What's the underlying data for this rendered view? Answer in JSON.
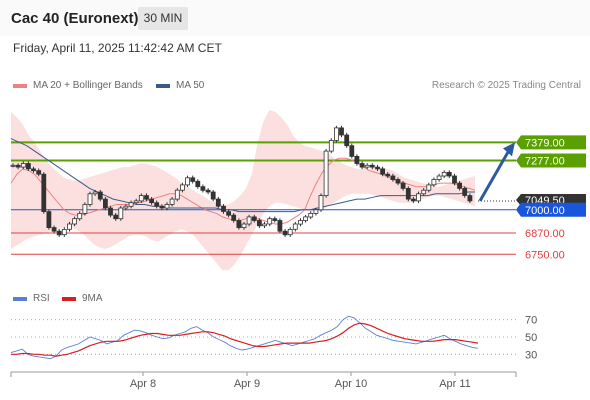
{
  "header": {
    "title": "Cac 40 (Euronext)",
    "timeframe": "30 MIN"
  },
  "timestamp": "Friday, April 11, 2025 11:42:42 AM CET",
  "legend": {
    "ma20_label": "MA 20 + Bollinger Bands",
    "ma50_label": "MA 50",
    "ma20_color": "#f08080",
    "ma50_color": "#3a5a8c",
    "copyright": "Research © 2025 Trading Central"
  },
  "rsi_legend": {
    "rsi_label": "RSI",
    "ma9_label": "9MA",
    "rsi_color": "#5b7fd6",
    "ma9_color": "#d62020"
  },
  "chart_data": [
    {
      "type": "candlestick",
      "x_ticks": [
        "Apr 8",
        "Apr 9",
        "Apr 10",
        "Apr 11"
      ],
      "ylim": [
        6600,
        7600
      ],
      "price_levels": [
        {
          "value": 7379,
          "label": "7379.00",
          "kind": "resistance",
          "color": "#5aa000"
        },
        {
          "value": 7277,
          "label": "7277.00",
          "kind": "resistance",
          "color": "#5aa000"
        },
        {
          "value": 7049.5,
          "label": "7049.50",
          "kind": "last-price",
          "color": "#333333"
        },
        {
          "value": 7000,
          "label": "7000.00",
          "kind": "pivot",
          "color": "#1a56db"
        },
        {
          "value": 6870,
          "label": "6870.00",
          "kind": "support",
          "color": "#e04040"
        },
        {
          "value": 6750,
          "label": "6750.00",
          "kind": "support",
          "color": "#e04040"
        }
      ],
      "forecast_arrow": {
        "from": 7050,
        "to": 7379,
        "direction": "up"
      },
      "close_series": [
        7250,
        7240,
        7260,
        7230,
        7220,
        7200,
        6990,
        6900,
        6880,
        6860,
        6890,
        6920,
        6950,
        6980,
        7030,
        7090,
        7100,
        7060,
        7010,
        6970,
        6950,
        7010,
        7020,
        7040,
        7050,
        7080,
        7060,
        7040,
        7020,
        7010,
        7030,
        7060,
        7110,
        7140,
        7180,
        7160,
        7130,
        7110,
        7100,
        7060,
        7020,
        6990,
        6970,
        6940,
        6900,
        6920,
        6960,
        6940,
        6910,
        6920,
        6950,
        6940,
        6880,
        6860,
        6890,
        6920,
        6940,
        6960,
        6980,
        7000,
        7080,
        7330,
        7390,
        7460,
        7420,
        7360,
        7300,
        7260,
        7240,
        7250,
        7240,
        7230,
        7200,
        7190,
        7170,
        7150,
        7120,
        7060,
        7050,
        7090,
        7110,
        7140,
        7170,
        7190,
        7210,
        7190,
        7150,
        7120,
        7080,
        7050
      ],
      "ma20_series": [
        7150,
        7200,
        7230,
        7220,
        7200,
        7160,
        7120,
        7080,
        7040,
        7000,
        6980,
        6970,
        6970,
        6980,
        6990,
        7000,
        7010,
        7020,
        7030,
        7030,
        7030,
        7040,
        7040,
        7050,
        7060,
        7070,
        7080,
        7090,
        7090,
        7080,
        7060,
        7040,
        7020,
        7000,
        6990,
        6980,
        6960,
        6950,
        6940,
        6940,
        6950,
        6950,
        6950,
        6940,
        6930,
        6920,
        6920,
        6930,
        6950,
        6970,
        7000,
        7080,
        7150,
        7210,
        7250,
        7280,
        7290,
        7290,
        7280,
        7260,
        7240,
        7220,
        7210,
        7200,
        7190,
        7170,
        7160,
        7150,
        7140,
        7130,
        7130,
        7130,
        7140,
        7150,
        7150,
        7150,
        7140,
        7130,
        7120,
        7110
      ],
      "bb_upper": [
        7550,
        7520,
        7480,
        7420,
        7380,
        7330,
        7280,
        7240,
        7210,
        7180,
        7170,
        7160,
        7170,
        7180,
        7190,
        7200,
        7210,
        7220,
        7230,
        7240,
        7240,
        7250,
        7260,
        7260,
        7250,
        7240,
        7220,
        7200,
        7180,
        7150,
        7130,
        7110,
        7090,
        7070,
        7050,
        7040,
        7030,
        7030,
        7050,
        7080,
        7120,
        7200,
        7380,
        7500,
        7560,
        7550,
        7520,
        7480,
        7420,
        7380,
        7360,
        7350,
        7340,
        7330,
        7320,
        7290,
        7270,
        7250,
        7240,
        7230,
        7230,
        7230,
        7240,
        7240,
        7230,
        7220,
        7200,
        7180,
        7170,
        7160,
        7150,
        7140,
        7130,
        7130,
        7140,
        7150,
        7160,
        7170,
        7180,
        7190
      ],
      "bb_lower": [
        6780,
        6800,
        6820,
        6840,
        6850,
        6860,
        6870,
        6880,
        6890,
        6900,
        6900,
        6890,
        6870,
        6840,
        6810,
        6790,
        6780,
        6790,
        6810,
        6830,
        6850,
        6860,
        6860,
        6850,
        6830,
        6820,
        6840,
        6860,
        6880,
        6890,
        6880,
        6860,
        6820,
        6780,
        6740,
        6700,
        6660,
        6660,
        6690,
        6740,
        6800,
        6860,
        6920,
        6980,
        7020,
        7040,
        7040,
        7030,
        7020,
        7010,
        7000,
        6990,
        6990,
        7000,
        7020,
        7040,
        7060,
        7080,
        7090,
        7090,
        7090,
        7090,
        7080,
        7070,
        7060,
        7050,
        7040,
        7040,
        7040,
        7050,
        7060,
        7070,
        7080,
        7080,
        7070,
        7060,
        7050,
        7040,
        7030,
        7020
      ],
      "ma50_series": [
        7400,
        7380,
        7360,
        7330,
        7300,
        7270,
        7240,
        7210,
        7180,
        7150,
        7120,
        7100,
        7080,
        7060,
        7050,
        7040,
        7030,
        7030,
        7020,
        7020,
        7010,
        7010,
        7010,
        7010,
        7010,
        7010,
        7010,
        7000,
        7000,
        6990,
        6990,
        6990,
        6990,
        6990,
        6990,
        6990,
        6990,
        7000,
        7000,
        7010,
        7020,
        7030,
        7040,
        7050,
        7060,
        7060,
        7070,
        7080,
        7080,
        7080,
        7080,
        7080,
        7080,
        7080,
        7090,
        7090,
        7090,
        7090,
        7100,
        7100
      ]
    },
    {
      "type": "line",
      "title": "RSI",
      "ylim": [
        20,
        80
      ],
      "y_ticks": [
        "70",
        "50",
        "30"
      ],
      "series": [
        {
          "name": "RSI",
          "values": [
            32,
            34,
            36,
            30,
            28,
            27,
            26,
            25,
            28,
            35,
            38,
            40,
            42,
            46,
            50,
            48,
            46,
            42,
            44,
            46,
            52,
            55,
            58,
            57,
            55,
            52,
            50,
            48,
            49,
            52,
            54,
            56,
            60,
            62,
            58,
            55,
            50,
            47,
            44,
            40,
            37,
            35,
            36,
            38,
            40,
            42,
            44,
            46,
            44,
            42,
            40,
            42,
            44,
            46,
            48,
            52,
            55,
            58,
            62,
            70,
            74,
            72,
            66,
            60,
            56,
            52,
            50,
            48,
            46,
            45,
            44,
            43,
            42,
            44,
            46,
            48,
            50,
            52,
            48,
            45,
            42,
            40,
            38,
            37
          ]
        },
        {
          "name": "9MA",
          "values": [
            30,
            30,
            31,
            31,
            30,
            30,
            29,
            29,
            28,
            29,
            30,
            32,
            34,
            37,
            40,
            42,
            44,
            45,
            45,
            45,
            46,
            48,
            50,
            52,
            53,
            54,
            54,
            53,
            52,
            52,
            52,
            53,
            54,
            55,
            56,
            56,
            55,
            53,
            51,
            48,
            46,
            44,
            42,
            40,
            39,
            39,
            40,
            41,
            42,
            43,
            43,
            43,
            43,
            43,
            44,
            45,
            46,
            48,
            51,
            55,
            60,
            64,
            66,
            65,
            63,
            60,
            57,
            54,
            52,
            50,
            48,
            47,
            46,
            45,
            45,
            45,
            46,
            47,
            47,
            47,
            46,
            45,
            44,
            43
          ]
        }
      ]
    }
  ]
}
